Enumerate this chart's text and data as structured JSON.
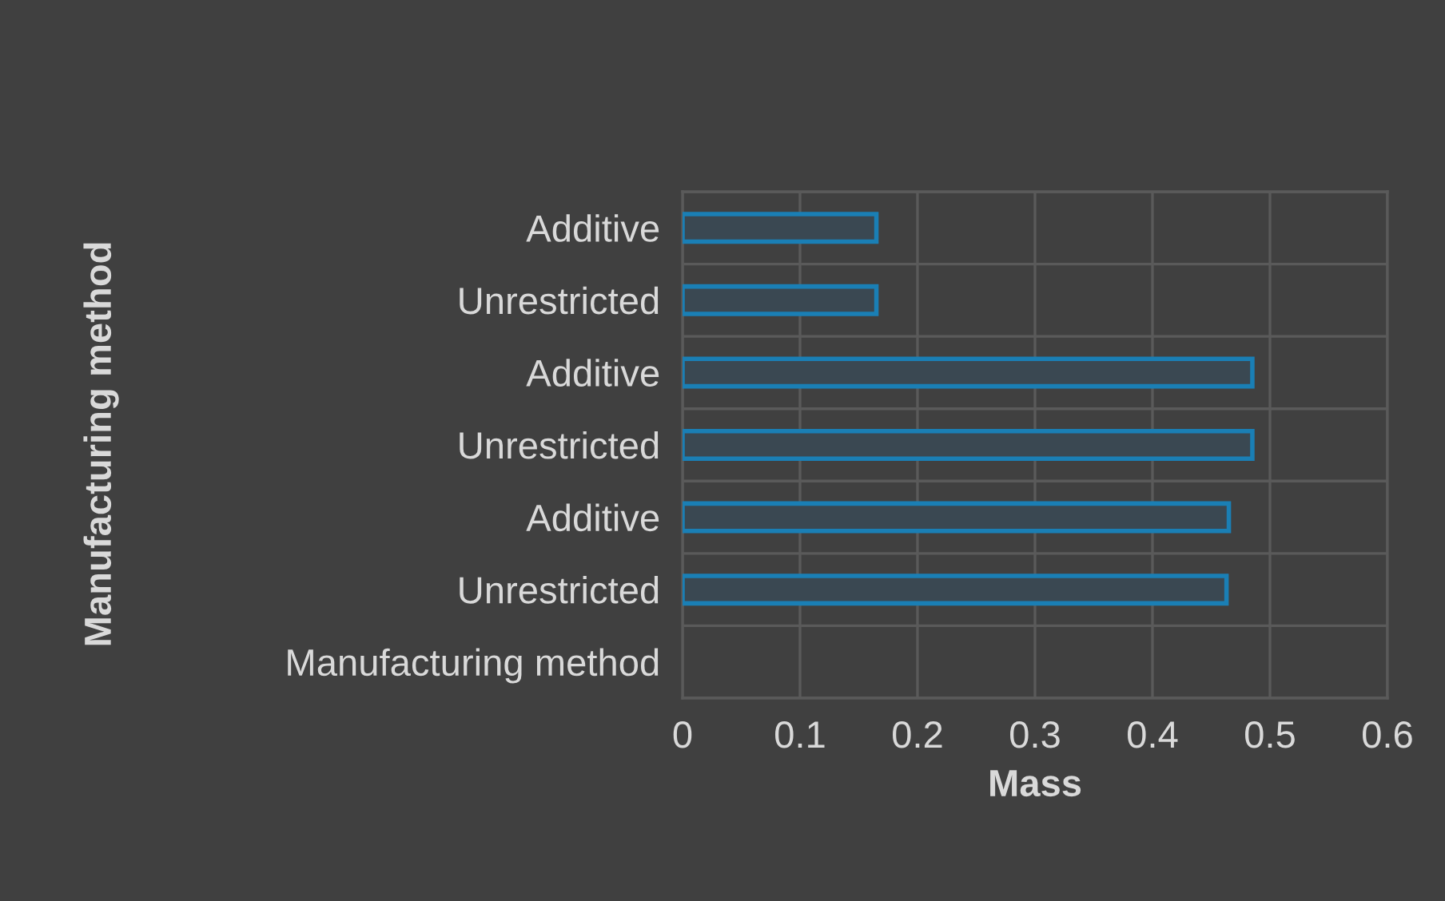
{
  "chart_data": {
    "type": "bar",
    "orientation": "horizontal",
    "xlabel": "Mass",
    "ylabel": "Manufacturing method",
    "categories": [
      "Additive",
      "Unrestricted",
      "Additive",
      "Unrestricted",
      "Additive",
      "Unrestricted",
      "Manufacturing method"
    ],
    "values": [
      0.165,
      0.165,
      0.485,
      0.485,
      0.465,
      0.463,
      null
    ],
    "color": "#1a7fb5",
    "xlim": [
      0,
      0.6
    ],
    "xticks": [
      0,
      0.1,
      0.2,
      0.3,
      0.4,
      0.5,
      0.6
    ],
    "grid": true
  }
}
